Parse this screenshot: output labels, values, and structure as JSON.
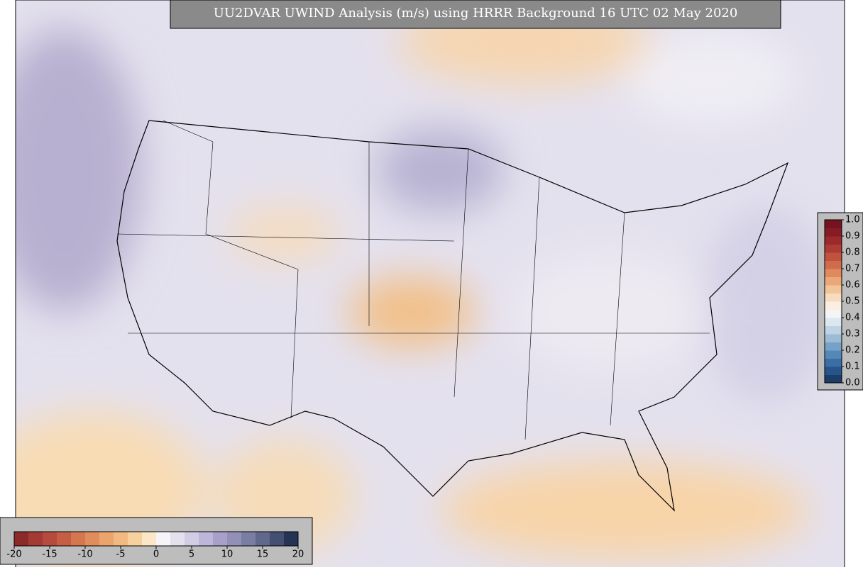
{
  "title": "UU2DVAR UWIND Analysis (m/s) using HRRR Background 16 UTC 02 May 2020",
  "uwind_colorbar": {
    "lim": [
      -20,
      20
    ],
    "ticks": [
      -20,
      -15,
      -10,
      -5,
      0,
      5,
      10,
      15,
      20
    ],
    "colors": [
      "#8c2a2a",
      "#a33a34",
      "#b64a3c",
      "#c65e45",
      "#d47650",
      "#e08c5c",
      "#eaa46c",
      "#f2ba82",
      "#f8d09e",
      "#fbe6c8",
      "#f6f4f8",
      "#e4e0ee",
      "#d2cce4",
      "#beb6d8",
      "#a8a0c8",
      "#9290b6",
      "#7a7ea2",
      "#60688c",
      "#445072",
      "#263454"
    ]
  },
  "observation_colorbar": {
    "lim": [
      0,
      1
    ],
    "ticks": [
      {
        "value": 0,
        "label": "0.0"
      },
      {
        "value": 0.1,
        "label": "0.1"
      },
      {
        "value": 0.2,
        "label": "0.2"
      },
      {
        "value": 0.3,
        "label": "0.3"
      },
      {
        "value": 0.4,
        "label": "0.4"
      },
      {
        "value": 0.5,
        "label": "0.5"
      },
      {
        "value": 0.6,
        "label": "0.6"
      },
      {
        "value": 0.7,
        "label": "0.7"
      },
      {
        "value": 0.8,
        "label": "0.8"
      },
      {
        "value": 0.9,
        "label": "0.9"
      },
      {
        "value": 1,
        "label": "1.0"
      }
    ],
    "colors": [
      "#1c3d6a",
      "#27548a",
      "#3a6ea4",
      "#5488b8",
      "#77a2c8",
      "#9cbcd6",
      "#bed4e4",
      "#dce8f0",
      "#f2f4f6",
      "#faeee0",
      "#f8dcc0",
      "#f2c49a",
      "#eaa878",
      "#de8a5e",
      "#d06c4c",
      "#c0523e",
      "#ae3c34",
      "#9a2a2c",
      "#881c26",
      "#741420"
    ]
  }
}
